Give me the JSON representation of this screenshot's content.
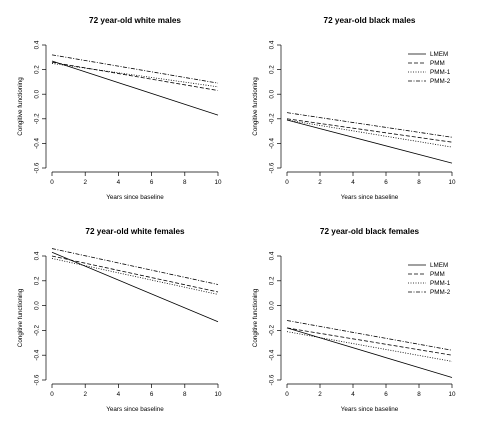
{
  "chart_data": [
    {
      "type": "line",
      "title": "72 year-old white males",
      "xlabel": "Years since baseline",
      "ylabel": "Congitive functioning",
      "xlim": [
        0,
        10
      ],
      "ylim": [
        -0.6,
        0.4
      ],
      "xticks": [
        0,
        2,
        4,
        6,
        8,
        10
      ],
      "yticks": [
        -0.6,
        -0.4,
        -0.2,
        0.0,
        0.2,
        0.4
      ],
      "ytick_labels": [
        "-0.6",
        "-0.4",
        "-0.2",
        "0.0",
        "0.2",
        "0.4"
      ],
      "legend": false,
      "series": [
        {
          "name": "LMEM",
          "dash": "none",
          "x": [
            0,
            10
          ],
          "y": [
            0.27,
            -0.17
          ]
        },
        {
          "name": "PMM",
          "dash": "4,2",
          "x": [
            0,
            10
          ],
          "y": [
            0.26,
            0.03
          ]
        },
        {
          "name": "PMM-1",
          "dash": "1,1.5",
          "x": [
            0,
            10
          ],
          "y": [
            0.25,
            0.06
          ]
        },
        {
          "name": "PMM-2",
          "dash": "4,1.5,1,1.5",
          "x": [
            0,
            10
          ],
          "y": [
            0.32,
            0.09
          ]
        }
      ]
    },
    {
      "type": "line",
      "title": "72 year-old black males",
      "xlabel": "Years since baseline",
      "ylabel": "Congitive functioning",
      "xlim": [
        0,
        10
      ],
      "ylim": [
        -0.6,
        0.4
      ],
      "xticks": [
        0,
        2,
        4,
        6,
        8,
        10
      ],
      "yticks": [
        -0.6,
        -0.4,
        -0.2,
        0.0,
        0.2,
        0.4
      ],
      "ytick_labels": [
        "-0.6",
        "-0.4",
        "-0.2",
        "0.0",
        "0.2",
        "0.4"
      ],
      "legend": true,
      "legend_position": "top-right",
      "series": [
        {
          "name": "LMEM",
          "dash": "none",
          "x": [
            0,
            10
          ],
          "y": [
            -0.21,
            -0.56
          ]
        },
        {
          "name": "PMM",
          "dash": "4,2",
          "x": [
            0,
            10
          ],
          "y": [
            -0.2,
            -0.39
          ]
        },
        {
          "name": "PMM-1",
          "dash": "1,1.5",
          "x": [
            0,
            10
          ],
          "y": [
            -0.21,
            -0.43
          ]
        },
        {
          "name": "PMM-2",
          "dash": "4,1.5,1,1.5",
          "x": [
            0,
            10
          ],
          "y": [
            -0.15,
            -0.35
          ]
        }
      ]
    },
    {
      "type": "line",
      "title": "72 year-old white females",
      "xlabel": "Years since baseline",
      "ylabel": "Congitive functioning",
      "xlim": [
        0,
        10
      ],
      "ylim": [
        -0.6,
        0.4
      ],
      "xticks": [
        0,
        2,
        4,
        6,
        8,
        10
      ],
      "yticks": [
        -0.6,
        -0.4,
        -0.2,
        0.0,
        0.2,
        0.4
      ],
      "ytick_labels": [
        "-0.6",
        "-0.4",
        "-0.2",
        "0.0",
        "0.2",
        "0.4"
      ],
      "legend": false,
      "series": [
        {
          "name": "LMEM",
          "dash": "none",
          "x": [
            0,
            10
          ],
          "y": [
            0.43,
            -0.13
          ]
        },
        {
          "name": "PMM",
          "dash": "4,2",
          "x": [
            0,
            10
          ],
          "y": [
            0.4,
            0.11
          ]
        },
        {
          "name": "PMM-1",
          "dash": "1,1.5",
          "x": [
            0,
            10
          ],
          "y": [
            0.38,
            0.09
          ]
        },
        {
          "name": "PMM-2",
          "dash": "4,1.5,1,1.5",
          "x": [
            0,
            10
          ],
          "y": [
            0.46,
            0.17
          ]
        }
      ]
    },
    {
      "type": "line",
      "title": "72 year-old black females",
      "xlabel": "Years since baseline",
      "ylabel": "Congitive functioning",
      "xlim": [
        0,
        10
      ],
      "ylim": [
        -0.6,
        0.4
      ],
      "xticks": [
        0,
        2,
        4,
        6,
        8,
        10
      ],
      "yticks": [
        -0.6,
        -0.4,
        -0.2,
        0.0,
        0.2,
        0.4
      ],
      "ytick_labels": [
        "-0.6",
        "-0.4",
        "-0.2",
        "0.0",
        "0.2",
        "0.4"
      ],
      "legend": true,
      "legend_position": "top-right",
      "series": [
        {
          "name": "LMEM",
          "dash": "none",
          "x": [
            0,
            10
          ],
          "y": [
            -0.18,
            -0.58
          ]
        },
        {
          "name": "PMM",
          "dash": "4,2",
          "x": [
            0,
            10
          ],
          "y": [
            -0.18,
            -0.4
          ]
        },
        {
          "name": "PMM-1",
          "dash": "1,1.5",
          "x": [
            0,
            10
          ],
          "y": [
            -0.21,
            -0.45
          ]
        },
        {
          "name": "PMM-2",
          "dash": "4,1.5,1,1.5",
          "x": [
            0,
            10
          ],
          "y": [
            -0.12,
            -0.36
          ]
        }
      ]
    }
  ]
}
